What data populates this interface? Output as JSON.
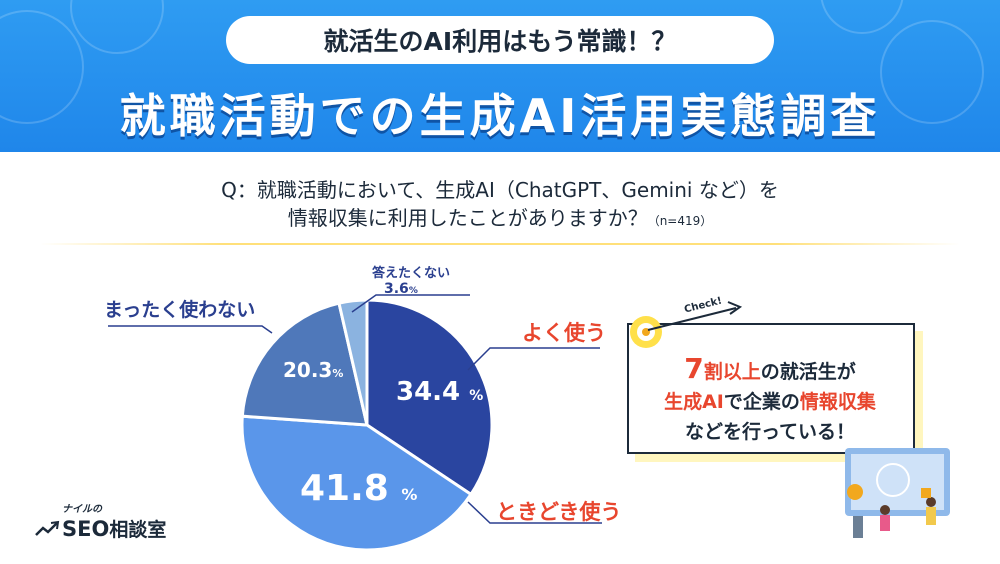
{
  "header": {
    "subtitle": "就活生のAI利用はもう常識！？",
    "title": "就職活動での生成AI活用実態調査"
  },
  "question": {
    "line1": "Q：就職活動において、生成AI（ChatGPT、Gemini など）を",
    "line2": "情報収集に利用したことがありますか？",
    "n": "（n=419）"
  },
  "chart_data": {
    "type": "pie",
    "categories": [
      "よく使う",
      "ときどき使う",
      "まったく使わない",
      "答えたくない"
    ],
    "values": [
      34.4,
      41.8,
      20.3,
      3.6
    ],
    "labels": [
      "34.4",
      "41.8",
      "20.3",
      "3.6"
    ],
    "unit": "%",
    "colors": [
      "#2a45a0",
      "#5a96ea",
      "#4f78ba",
      "#8bb3e0"
    ]
  },
  "callout": {
    "check": "Check!",
    "l1_big": "7",
    "l1_red": "割以上",
    "l1_rest": "の就活生が",
    "l2_red1": "生成AI",
    "l2_mid": "で企業の",
    "l2_red2": "情報収集",
    "l3": "などを行っている！"
  },
  "logo": {
    "small": "ナイルの",
    "seo": "SEO",
    "rest": "相談室"
  }
}
